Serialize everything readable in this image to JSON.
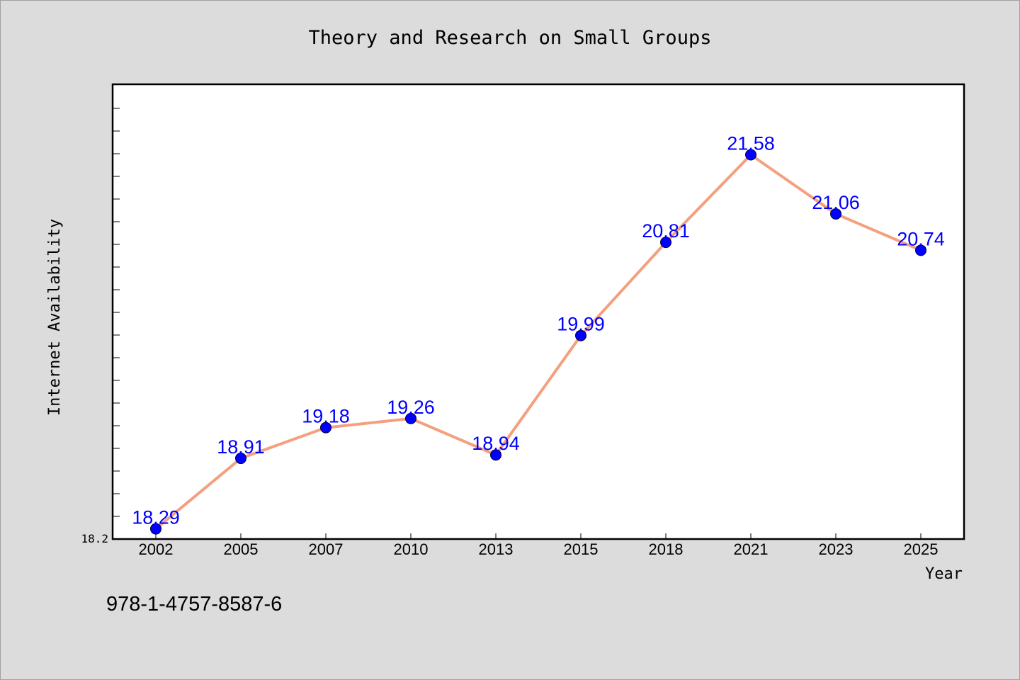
{
  "chart_data": {
    "type": "line",
    "title": "Theory and Research on Small Groups",
    "xlabel": "Year",
    "ylabel": "Internet Availability",
    "categories": [
      "2002",
      "2005",
      "2007",
      "2010",
      "2013",
      "2015",
      "2018",
      "2021",
      "2023",
      "2025"
    ],
    "series": [
      {
        "values": [
          18.29,
          18.91,
          19.18,
          19.26,
          18.94,
          19.99,
          20.81,
          21.58,
          21.06,
          20.74
        ],
        "color": "#f4a07e",
        "marker_color": "#0000ff"
      }
    ],
    "ylim": [
      18.2,
      22.2
    ],
    "y_tick_label": "18.2",
    "grid": false,
    "legend": "none",
    "data_label_color": "#0000ff"
  },
  "footer_text": "978-1-4757-8587-6"
}
